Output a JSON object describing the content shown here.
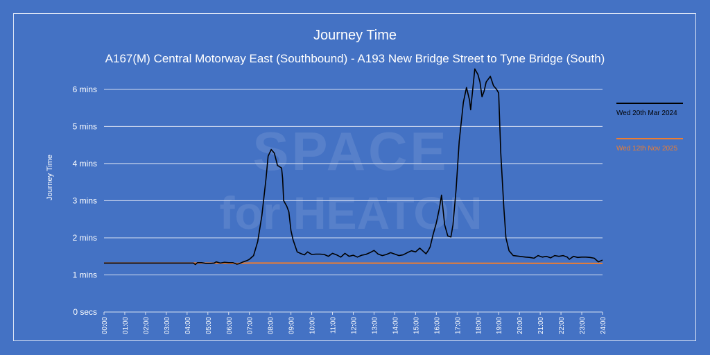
{
  "chart_data": {
    "type": "line",
    "title": "Journey Time",
    "subtitle": "A167(M) Central Motorway East (Southbound) - A193 New Bridge Street to Tyne Bridge (South)",
    "ylabel": "Journey Time",
    "xlabel": "",
    "watermark_line1": "SPACE",
    "watermark_line2": "for HEATON",
    "ylim": [
      0,
      7.1
    ],
    "y_ticks": [
      {
        "v": 0,
        "label": "0 secs"
      },
      {
        "v": 1,
        "label": "1 mins"
      },
      {
        "v": 2,
        "label": "2 mins"
      },
      {
        "v": 3,
        "label": "3 mins"
      },
      {
        "v": 4,
        "label": "4 mins"
      },
      {
        "v": 5,
        "label": "5 mins"
      },
      {
        "v": 6,
        "label": "6 mins"
      }
    ],
    "xlim": [
      0,
      24
    ],
    "x_ticks": [
      "00:00",
      "01:00",
      "02:00",
      "03:00",
      "04:00",
      "05:00",
      "06:00",
      "07:00",
      "08:00",
      "09:00",
      "10:00",
      "11:00",
      "12:00",
      "13:00",
      "14:00",
      "15:00",
      "16:00",
      "17:00",
      "18:00",
      "19:00",
      "20:00",
      "21:00",
      "22:00",
      "23:00",
      "24:00"
    ],
    "grid": true,
    "legend_position": "right",
    "series": [
      {
        "name": "Wed 20th Mar 2024",
        "color": "#000000",
        "points": [
          [
            0,
            1.32
          ],
          [
            1,
            1.32
          ],
          [
            2,
            1.32
          ],
          [
            3,
            1.32
          ],
          [
            4,
            1.32
          ],
          [
            4.3,
            1.32
          ],
          [
            4.4,
            1.28
          ],
          [
            4.5,
            1.33
          ],
          [
            4.7,
            1.33
          ],
          [
            4.9,
            1.31
          ],
          [
            5.1,
            1.31
          ],
          [
            5.3,
            1.32
          ],
          [
            5.4,
            1.35
          ],
          [
            5.6,
            1.32
          ],
          [
            5.8,
            1.34
          ],
          [
            6.0,
            1.33
          ],
          [
            6.2,
            1.33
          ],
          [
            6.4,
            1.29
          ],
          [
            6.5,
            1.3
          ],
          [
            6.7,
            1.35
          ],
          [
            6.9,
            1.39
          ],
          [
            7.0,
            1.42
          ],
          [
            7.2,
            1.52
          ],
          [
            7.4,
            1.9
          ],
          [
            7.6,
            2.6
          ],
          [
            7.8,
            3.6
          ],
          [
            7.9,
            4.2
          ],
          [
            8.05,
            4.38
          ],
          [
            8.2,
            4.28
          ],
          [
            8.35,
            3.95
          ],
          [
            8.55,
            3.88
          ],
          [
            8.6,
            3.6
          ],
          [
            8.65,
            3.0
          ],
          [
            8.8,
            2.85
          ],
          [
            8.9,
            2.7
          ],
          [
            9.0,
            2.2
          ],
          [
            9.1,
            1.95
          ],
          [
            9.3,
            1.62
          ],
          [
            9.5,
            1.57
          ],
          [
            9.65,
            1.54
          ],
          [
            9.8,
            1.62
          ],
          [
            10.0,
            1.55
          ],
          [
            10.2,
            1.56
          ],
          [
            10.4,
            1.56
          ],
          [
            10.6,
            1.55
          ],
          [
            10.8,
            1.5
          ],
          [
            11.0,
            1.58
          ],
          [
            11.2,
            1.54
          ],
          [
            11.4,
            1.48
          ],
          [
            11.6,
            1.58
          ],
          [
            11.8,
            1.5
          ],
          [
            12.0,
            1.53
          ],
          [
            12.2,
            1.48
          ],
          [
            12.4,
            1.53
          ],
          [
            12.6,
            1.55
          ],
          [
            12.8,
            1.6
          ],
          [
            13.0,
            1.66
          ],
          [
            13.2,
            1.56
          ],
          [
            13.4,
            1.52
          ],
          [
            13.6,
            1.55
          ],
          [
            13.8,
            1.6
          ],
          [
            14.0,
            1.56
          ],
          [
            14.2,
            1.52
          ],
          [
            14.4,
            1.54
          ],
          [
            14.6,
            1.6
          ],
          [
            14.8,
            1.65
          ],
          [
            15.0,
            1.62
          ],
          [
            15.2,
            1.72
          ],
          [
            15.4,
            1.62
          ],
          [
            15.5,
            1.57
          ],
          [
            15.6,
            1.65
          ],
          [
            15.7,
            1.75
          ],
          [
            15.85,
            2.1
          ],
          [
            16.0,
            2.4
          ],
          [
            16.15,
            2.8
          ],
          [
            16.25,
            3.15
          ],
          [
            16.4,
            2.35
          ],
          [
            16.55,
            2.05
          ],
          [
            16.7,
            2.02
          ],
          [
            16.8,
            2.35
          ],
          [
            16.95,
            3.3
          ],
          [
            17.1,
            4.6
          ],
          [
            17.3,
            5.65
          ],
          [
            17.45,
            6.05
          ],
          [
            17.6,
            5.7
          ],
          [
            17.65,
            5.45
          ],
          [
            17.75,
            6.0
          ],
          [
            17.85,
            6.55
          ],
          [
            18.0,
            6.4
          ],
          [
            18.1,
            6.2
          ],
          [
            18.2,
            5.8
          ],
          [
            18.3,
            5.95
          ],
          [
            18.4,
            6.2
          ],
          [
            18.6,
            6.35
          ],
          [
            18.75,
            6.1
          ],
          [
            18.9,
            6.0
          ],
          [
            19.0,
            5.9
          ],
          [
            19.1,
            4.3
          ],
          [
            19.25,
            2.8
          ],
          [
            19.35,
            2.0
          ],
          [
            19.5,
            1.65
          ],
          [
            19.7,
            1.52
          ],
          [
            20.0,
            1.5
          ],
          [
            20.3,
            1.48
          ],
          [
            20.5,
            1.47
          ],
          [
            20.7,
            1.45
          ],
          [
            20.9,
            1.52
          ],
          [
            21.1,
            1.48
          ],
          [
            21.3,
            1.5
          ],
          [
            21.5,
            1.46
          ],
          [
            21.7,
            1.52
          ],
          [
            21.9,
            1.5
          ],
          [
            22.1,
            1.52
          ],
          [
            22.3,
            1.48
          ],
          [
            22.4,
            1.42
          ],
          [
            22.6,
            1.5
          ],
          [
            22.8,
            1.47
          ],
          [
            23.0,
            1.48
          ],
          [
            23.2,
            1.48
          ],
          [
            23.4,
            1.47
          ],
          [
            23.6,
            1.45
          ],
          [
            23.8,
            1.35
          ],
          [
            24.0,
            1.4
          ]
        ]
      },
      {
        "name": "Wed 12th Nov 2025",
        "color": "#ed7d31",
        "points": [
          [
            0,
            1.32
          ],
          [
            4.7,
            1.32
          ],
          [
            6.4,
            1.31
          ],
          [
            7.0,
            1.32
          ],
          [
            24,
            1.31
          ]
        ]
      }
    ]
  }
}
